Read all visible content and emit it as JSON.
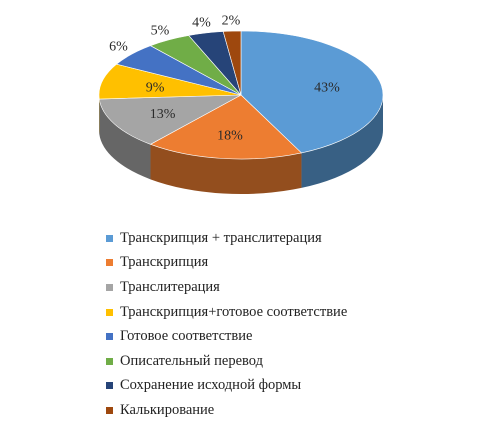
{
  "chart_data": {
    "type": "pie",
    "style": "3d",
    "legend_position": "bottom",
    "categories": [
      "Транскрипция + транслитерация",
      "Транскрипция",
      "Транслитерация",
      "Транскрипция+готовое соответствие",
      "Готовое соответствие",
      "Описательный перевод",
      "Сохранение исходной формы",
      "Калькирование"
    ],
    "values": [
      43,
      18,
      13,
      9,
      6,
      5,
      4,
      2
    ],
    "value_labels": [
      "43%",
      "18%",
      "13%",
      "9%",
      "6%",
      "5%",
      "4%",
      "2%"
    ],
    "colors": [
      "#5B9BD5",
      "#ED7D31",
      "#A5A5A5",
      "#FFC000",
      "#4472C4",
      "#70AD47",
      "#264478",
      "#9E480E"
    ]
  }
}
